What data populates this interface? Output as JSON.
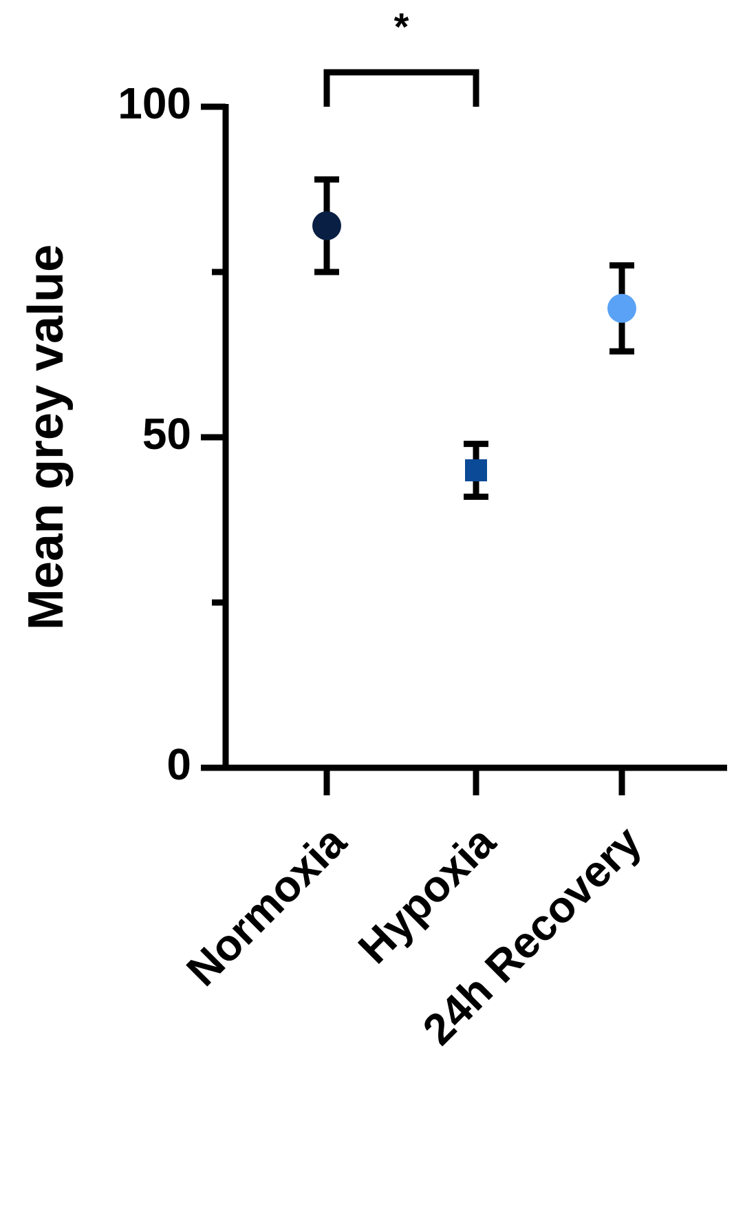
{
  "chart_data": {
    "type": "errorbar",
    "y_label": "Mean grey value",
    "categories": [
      "Normoxia",
      "Hypoxia",
      "24h Recovery"
    ],
    "values": [
      82,
      45,
      69.5
    ],
    "errors": [
      7,
      4,
      6.5
    ],
    "colors": [
      "#0a1f44",
      "#0b4a96",
      "#5aa2f5"
    ],
    "markers": [
      "circle",
      "square",
      "circle"
    ],
    "ylim": [
      0,
      100
    ],
    "yticks": [
      0,
      50,
      100
    ],
    "yminor_ticks": [
      25,
      75
    ],
    "annotations": [
      {
        "text": "*",
        "from": 0,
        "to": 1
      }
    ]
  }
}
